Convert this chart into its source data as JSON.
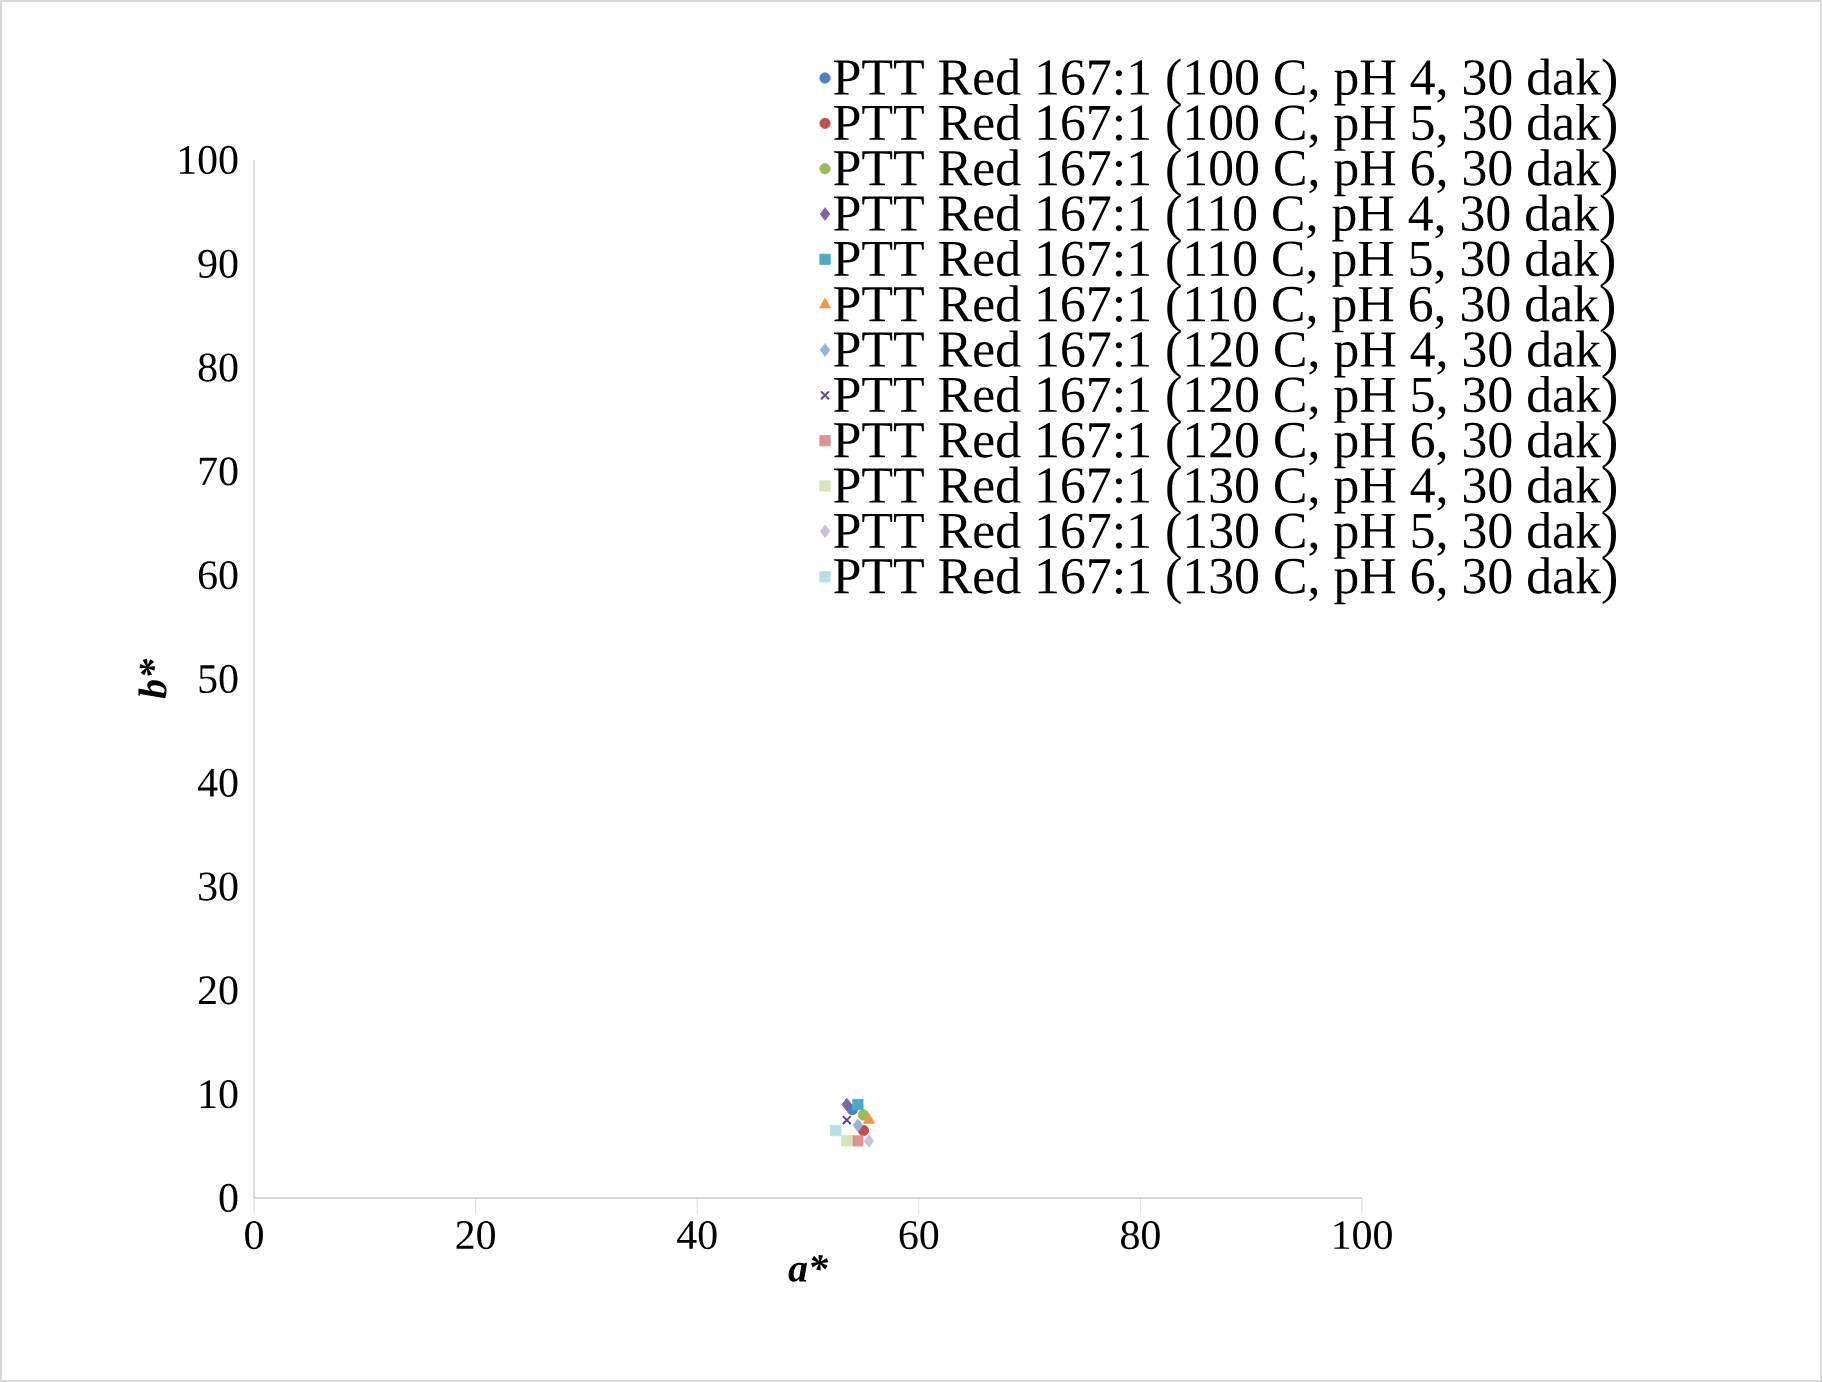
{
  "chart_data": {
    "type": "scatter",
    "xlabel": "a*",
    "ylabel": "b*",
    "xlim": [
      0,
      100
    ],
    "xticks": [
      0,
      20,
      40,
      60,
      80,
      100
    ],
    "ylim": [
      0,
      100
    ],
    "yticks": [
      0,
      10,
      20,
      30,
      40,
      50,
      60,
      70,
      80,
      90,
      100
    ],
    "legend": "top right",
    "grid": false,
    "series": [
      {
        "name": "PTT Red 167:1 (100 C, pH 4, 30 dak)",
        "color": "#4f81bd",
        "marker": "circle",
        "x": [
          54.0
        ],
        "values": [
          8.5
        ]
      },
      {
        "name": "PTT Red 167:1 (100 C, pH 5, 30 dak)",
        "color": "#c0504d",
        "marker": "circle",
        "x": [
          55.0
        ],
        "values": [
          6.5
        ]
      },
      {
        "name": "PTT Red 167:1 (100 C, pH 6, 30 dak)",
        "color": "#9bbb59",
        "marker": "circle",
        "x": [
          55.0
        ],
        "values": [
          8.0
        ]
      },
      {
        "name": "PTT Red 167:1 (110 C, pH 4, 30 dak)",
        "color": "#8064a2",
        "marker": "diamond",
        "x": [
          53.5
        ],
        "values": [
          9.0
        ]
      },
      {
        "name": "PTT Red 167:1 (110 C, pH 5, 30 dak)",
        "color": "#4bacc6",
        "marker": "square",
        "x": [
          54.5
        ],
        "values": [
          9.0
        ]
      },
      {
        "name": "PTT Red 167:1 (110 C, pH 6, 30 dak)",
        "color": "#f79646",
        "marker": "triangle",
        "x": [
          55.5
        ],
        "values": [
          7.5
        ]
      },
      {
        "name": "PTT Red 167:1 (120 C, pH 4, 30 dak)",
        "color": "#95b3d7",
        "marker": "diamond",
        "x": [
          54.5
        ],
        "values": [
          7.0
        ]
      },
      {
        "name": "PTT Red 167:1 (120 C, pH 5, 30 dak)",
        "color": "#604a7b",
        "marker": "cross",
        "x": [
          53.5
        ],
        "values": [
          7.5
        ]
      },
      {
        "name": "PTT Red 167:1 (120 C, pH 6, 30 dak)",
        "color": "#da9694",
        "marker": "square",
        "x": [
          54.5
        ],
        "values": [
          5.5
        ]
      },
      {
        "name": "PTT Red 167:1 (130 C, pH 4, 30 dak)",
        "color": "#d7e4bd",
        "marker": "square",
        "x": [
          53.5
        ],
        "values": [
          5.5
        ]
      },
      {
        "name": "PTT Red 167:1 (130 C, pH 5, 30 dak)",
        "color": "#ccc0da",
        "marker": "diamond",
        "x": [
          55.5
        ],
        "values": [
          5.5
        ]
      },
      {
        "name": "PTT Red 167:1 (130 C, pH 6, 30 dak)",
        "color": "#b7dee8",
        "marker": "square",
        "x": [
          52.5
        ],
        "values": [
          6.5
        ]
      }
    ]
  }
}
